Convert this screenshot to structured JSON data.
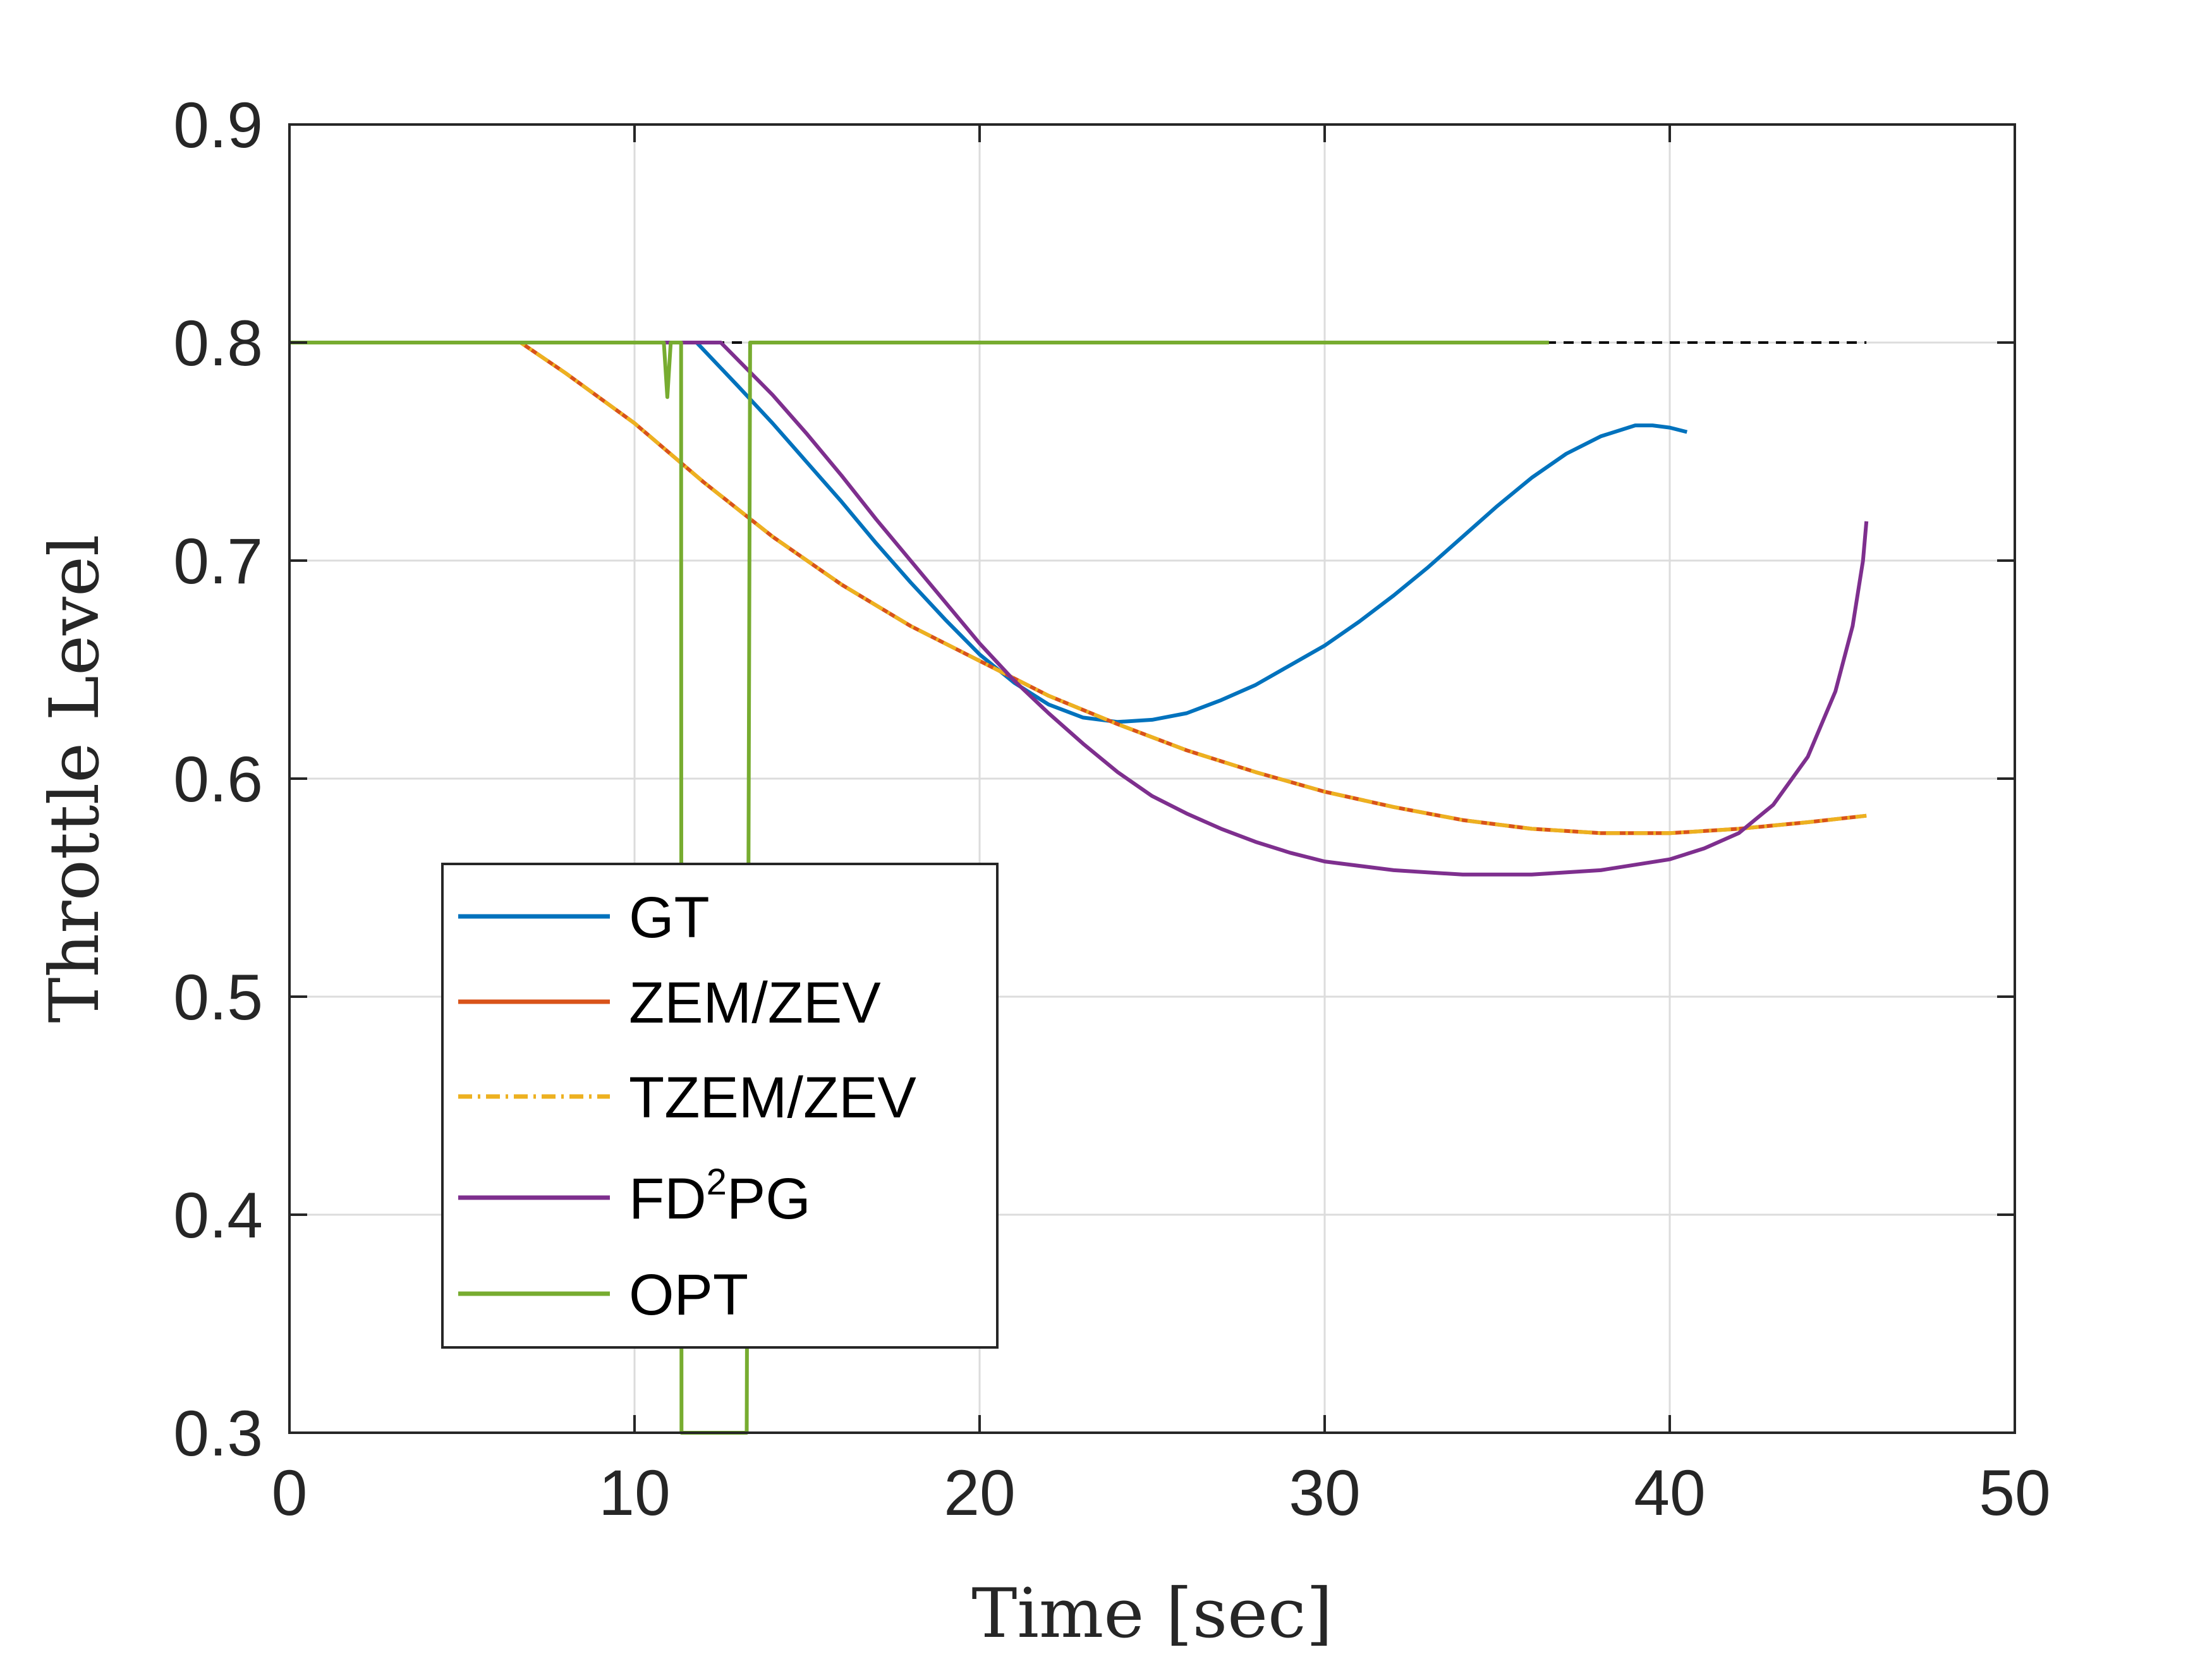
{
  "chart_data": {
    "type": "line",
    "title": "",
    "xlabel": "Time [sec]",
    "ylabel": "Throttle Level",
    "xlim": [
      0,
      50
    ],
    "ylim": [
      0.3,
      0.9
    ],
    "xticks": [
      0,
      10,
      20,
      30,
      40,
      50
    ],
    "xtick_labels": [
      "0",
      "10",
      "20",
      "30",
      "40",
      "50"
    ],
    "yticks": [
      0.3,
      0.4,
      0.5,
      0.6,
      0.7,
      0.8,
      0.9
    ],
    "ytick_labels": [
      "0.3",
      "0.4",
      "0.5",
      "0.6",
      "0.7",
      "0.8",
      "0.9"
    ],
    "grid": true,
    "legend_position": "lower-left",
    "series": [
      {
        "name": "GT",
        "legend_label": "GT",
        "color": "#0072BD",
        "dash": "solid",
        "x": [
          0,
          11.8,
          13,
          14,
          15,
          16,
          17,
          18,
          19,
          20,
          21,
          22,
          23,
          24,
          25,
          26,
          27,
          28,
          29,
          30,
          31,
          32,
          33,
          34,
          35,
          36,
          37,
          38,
          39,
          39.5,
          40,
          40.5
        ],
        "y": [
          0.8,
          0.8,
          0.78,
          0.763,
          0.745,
          0.727,
          0.708,
          0.69,
          0.673,
          0.657,
          0.644,
          0.634,
          0.628,
          0.626,
          0.627,
          0.63,
          0.636,
          0.643,
          0.652,
          0.661,
          0.672,
          0.684,
          0.697,
          0.711,
          0.725,
          0.738,
          0.749,
          0.757,
          0.762,
          0.762,
          0.761,
          0.759
        ]
      },
      {
        "name": "ZEM/ZEV",
        "legend_label": "ZEM/ZEV",
        "color": "#D95319",
        "dash": "solid",
        "x": [
          0,
          6.7,
          8,
          10,
          12,
          14,
          16,
          18,
          20,
          22,
          24,
          26,
          28,
          30,
          32,
          34,
          36,
          38,
          40,
          42,
          44,
          45.7
        ],
        "y": [
          0.8,
          0.8,
          0.786,
          0.763,
          0.736,
          0.711,
          0.689,
          0.67,
          0.654,
          0.638,
          0.625,
          0.613,
          0.603,
          0.594,
          0.587,
          0.581,
          0.577,
          0.575,
          0.575,
          0.577,
          0.58,
          0.583
        ]
      },
      {
        "name": "TZEM/ZEV",
        "legend_label": "TZEM/ZEV",
        "color": "#EDB120",
        "dash": "dashdot",
        "x": [
          0,
          6.7,
          8,
          10,
          12,
          14,
          16,
          18,
          20,
          22,
          24,
          26,
          28,
          30,
          32,
          34,
          36,
          38,
          40,
          42,
          44,
          45.7
        ],
        "y": [
          0.8,
          0.8,
          0.786,
          0.763,
          0.736,
          0.711,
          0.689,
          0.67,
          0.654,
          0.638,
          0.625,
          0.613,
          0.603,
          0.594,
          0.587,
          0.581,
          0.577,
          0.575,
          0.575,
          0.577,
          0.58,
          0.583
        ]
      },
      {
        "name": "FD2PG",
        "legend_label": "FD",
        "legend_sup": "2",
        "legend_suffix": "PG",
        "color": "#7E2F8E",
        "dash": "solid",
        "x": [
          0,
          12.5,
          14,
          15,
          16,
          17,
          18,
          19,
          20,
          21,
          22,
          23,
          24,
          25,
          26,
          27,
          28,
          29,
          30,
          32,
          34,
          36,
          38,
          40,
          41,
          42,
          43,
          44,
          44.8,
          45.3,
          45.6,
          45.7
        ],
        "y": [
          0.8,
          0.8,
          0.776,
          0.758,
          0.739,
          0.719,
          0.7,
          0.681,
          0.662,
          0.645,
          0.63,
          0.616,
          0.603,
          0.592,
          0.584,
          0.577,
          0.571,
          0.566,
          0.562,
          0.558,
          0.556,
          0.556,
          0.558,
          0.563,
          0.568,
          0.575,
          0.588,
          0.61,
          0.64,
          0.67,
          0.7,
          0.718
        ]
      },
      {
        "name": "OPT",
        "legend_label": "OPT",
        "color": "#77AC30",
        "dash": "solid",
        "x": [
          0,
          10.85,
          10.95,
          11.05,
          11.15,
          11.35,
          11.36,
          11.45,
          13.25,
          13.35,
          13.5,
          36.5
        ],
        "y": [
          0.8,
          0.8,
          0.775,
          0.8,
          0.8,
          0.8,
          0.3,
          0.3,
          0.3,
          0.8,
          0.8,
          0.8
        ]
      },
      {
        "name": "upper throttle bound",
        "legend_label": "",
        "color": "#000000",
        "dash": "dashed",
        "x": [
          0,
          45.7
        ],
        "y": [
          0.8,
          0.8
        ]
      },
      {
        "name": "lower throttle bound",
        "legend_label": "",
        "color": "#000000",
        "dash": "dashed",
        "x": [
          0,
          45.7
        ],
        "y": [
          0.3,
          0.3
        ]
      }
    ]
  }
}
